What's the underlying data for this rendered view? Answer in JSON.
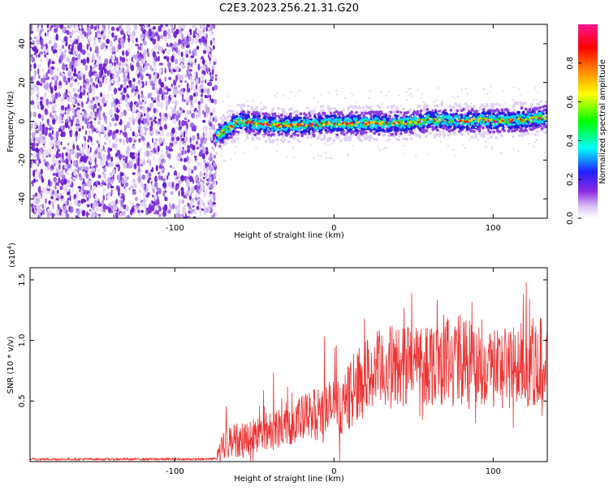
{
  "title": "C2E3.2023.256.21.31.G20",
  "chart_data": [
    {
      "type": "heatmap",
      "xlabel": "Height of straight line (km)",
      "ylabel": "Frequency (Hz)",
      "xlim": [
        -191,
        134
      ],
      "ylim": [
        -50,
        50
      ],
      "xticks": [
        -100,
        0,
        100
      ],
      "yticks": [
        -40,
        -20,
        0,
        20,
        40
      ],
      "colorbar": {
        "label": "Normalized spectral amplitude",
        "range": [
          0,
          1
        ],
        "ticks": [
          "0.0",
          "0.2",
          "0.4",
          "0.6",
          "0.8"
        ]
      },
      "noise_region_x": [
        -191,
        -74
      ],
      "signal_band": {
        "x": [
          -74,
          -60,
          -40,
          -20,
          0,
          20,
          40,
          55,
          60,
          80,
          95,
          100,
          120,
          134
        ],
        "center_freq": [
          -8,
          0,
          -2,
          -2,
          -1,
          -1,
          -1,
          0,
          1,
          0,
          1,
          0,
          1,
          2
        ]
      }
    },
    {
      "type": "line",
      "xlabel": "Height of straight line (km)",
      "ylabel": "SNR (10 * v/v)",
      "y_multiplier": "(x10",
      "y_multiplier_exp": "4",
      "y_multiplier_close": ")",
      "xlim": [
        -191,
        134
      ],
      "ylim": [
        0,
        1.6
      ],
      "xticks": [
        -100,
        0,
        100
      ],
      "yticks": [
        "0.5",
        "1.0",
        "1.5"
      ],
      "series": [
        {
          "color": "#ee3333",
          "x": [
            -191,
            -150,
            -100,
            -80,
            -74,
            -70,
            -65,
            -60,
            -55,
            -50,
            -45,
            -40,
            -35,
            -30,
            -25,
            -20,
            -15,
            -10,
            -5,
            0,
            5,
            10,
            15,
            20,
            30,
            40,
            50,
            60,
            70,
            80,
            90,
            100,
            110,
            120,
            130,
            134
          ],
          "y": [
            0.02,
            0.02,
            0.02,
            0.02,
            0.03,
            0.15,
            0.18,
            0.17,
            0.2,
            0.22,
            0.24,
            0.26,
            0.29,
            0.31,
            0.33,
            0.35,
            0.38,
            0.4,
            0.43,
            0.46,
            0.45,
            0.55,
            0.62,
            0.7,
            0.76,
            0.79,
            0.81,
            0.82,
            0.84,
            0.85,
            0.8,
            0.79,
            0.78,
            0.8,
            0.84,
            0.86
          ]
        }
      ]
    }
  ]
}
